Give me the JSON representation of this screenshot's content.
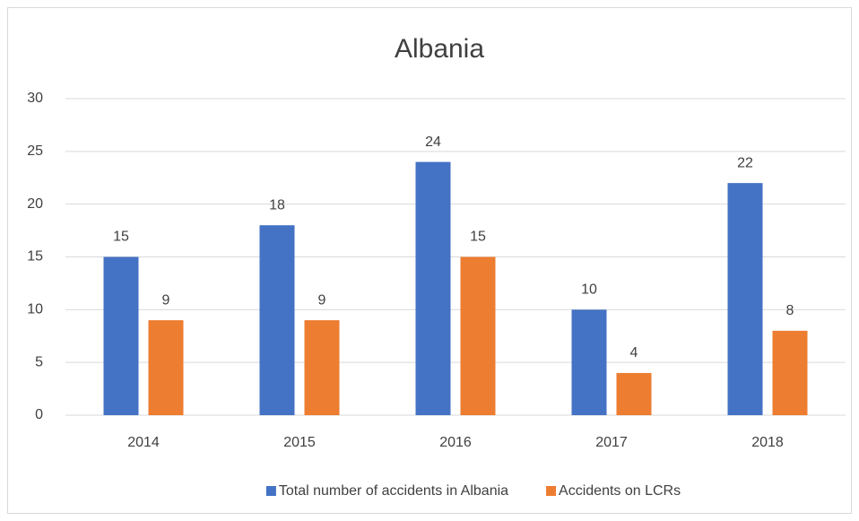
{
  "chart_data": {
    "type": "bar",
    "title": "Albania",
    "categories": [
      "2014",
      "2015",
      "2016",
      "2017",
      "2018"
    ],
    "series": [
      {
        "name": "Total number of accidents in Albania",
        "color": "#4472c4",
        "values": [
          15,
          18,
          24,
          10,
          22
        ]
      },
      {
        "name": "Accidents on LCRs",
        "color": "#ed7d31",
        "values": [
          9,
          9,
          15,
          4,
          8
        ]
      }
    ],
    "ylim": [
      0,
      30
    ],
    "yticks": [
      0,
      5,
      10,
      15,
      20,
      25,
      30
    ],
    "grid": true,
    "legend": "bottom"
  }
}
